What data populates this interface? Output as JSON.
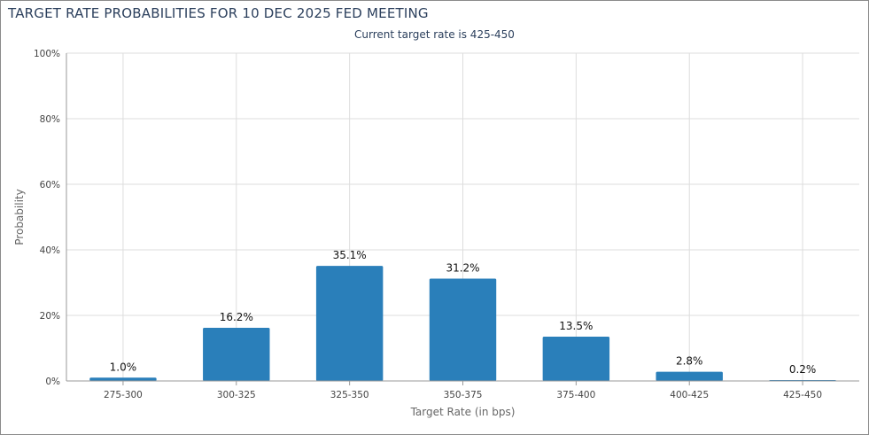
{
  "header": {
    "title": "TARGET RATE PROBABILITIES FOR 10 DEC 2025 FED MEETING",
    "subtitle": "Current target rate is 425-450"
  },
  "colors": {
    "bar": "#2a7fba",
    "grid": "#dddddd",
    "axis": "#999999"
  },
  "chart_data": {
    "type": "bar",
    "title": "TARGET RATE PROBABILITIES FOR 10 DEC 2025 FED MEETING",
    "subtitle": "Current target rate is 425-450",
    "xlabel": "Target Rate (in bps)",
    "ylabel": "Probability",
    "categories": [
      "275-300",
      "300-325",
      "325-350",
      "350-375",
      "375-400",
      "400-425",
      "425-450"
    ],
    "values": [
      1.0,
      16.2,
      35.1,
      31.2,
      13.5,
      2.8,
      0.2
    ],
    "data_labels": [
      "1.0%",
      "16.2%",
      "35.1%",
      "31.2%",
      "13.5%",
      "2.8%",
      "0.2%"
    ],
    "ylim": [
      0,
      100
    ],
    "yticks": [
      0,
      20,
      40,
      60,
      80,
      100
    ],
    "ytick_labels": [
      "0%",
      "20%",
      "40%",
      "60%",
      "80%",
      "100%"
    ],
    "grid": true,
    "legend": "none"
  }
}
